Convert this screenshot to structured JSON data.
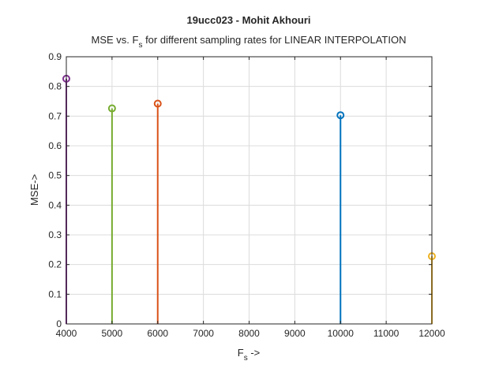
{
  "chart_data": {
    "type": "stem",
    "title": "19ucc023 - Mohit Akhouri",
    "subtitle_main": "MSE vs. F",
    "subtitle_sub": "s",
    "subtitle_rest": " for different sampling rates for LINEAR INTERPOLATION",
    "xlabel_main": "F",
    "xlabel_sub": "s",
    "xlabel_rest": " ->",
    "ylabel": "MSE->",
    "xlim": [
      4000,
      12000
    ],
    "ylim": [
      0,
      0.9
    ],
    "xticks": [
      "4000",
      "5000",
      "6000",
      "7000",
      "8000",
      "9000",
      "10000",
      "11000",
      "12000"
    ],
    "yticks": [
      "0",
      "0.1",
      "0.2",
      "0.3",
      "0.4",
      "0.5",
      "0.6",
      "0.7",
      "0.8",
      "0.9"
    ],
    "grid": true,
    "series": [
      {
        "x": 10000,
        "y": 0.703,
        "color": "#0072BD"
      },
      {
        "x": 6000,
        "y": 0.742,
        "color": "#D95319"
      },
      {
        "x": 12000,
        "y": 0.228,
        "color": "#EDB120"
      },
      {
        "x": 4000,
        "y": 0.826,
        "color": "#7E2F8E"
      },
      {
        "x": 5000,
        "y": 0.726,
        "color": "#77AC30"
      }
    ]
  }
}
